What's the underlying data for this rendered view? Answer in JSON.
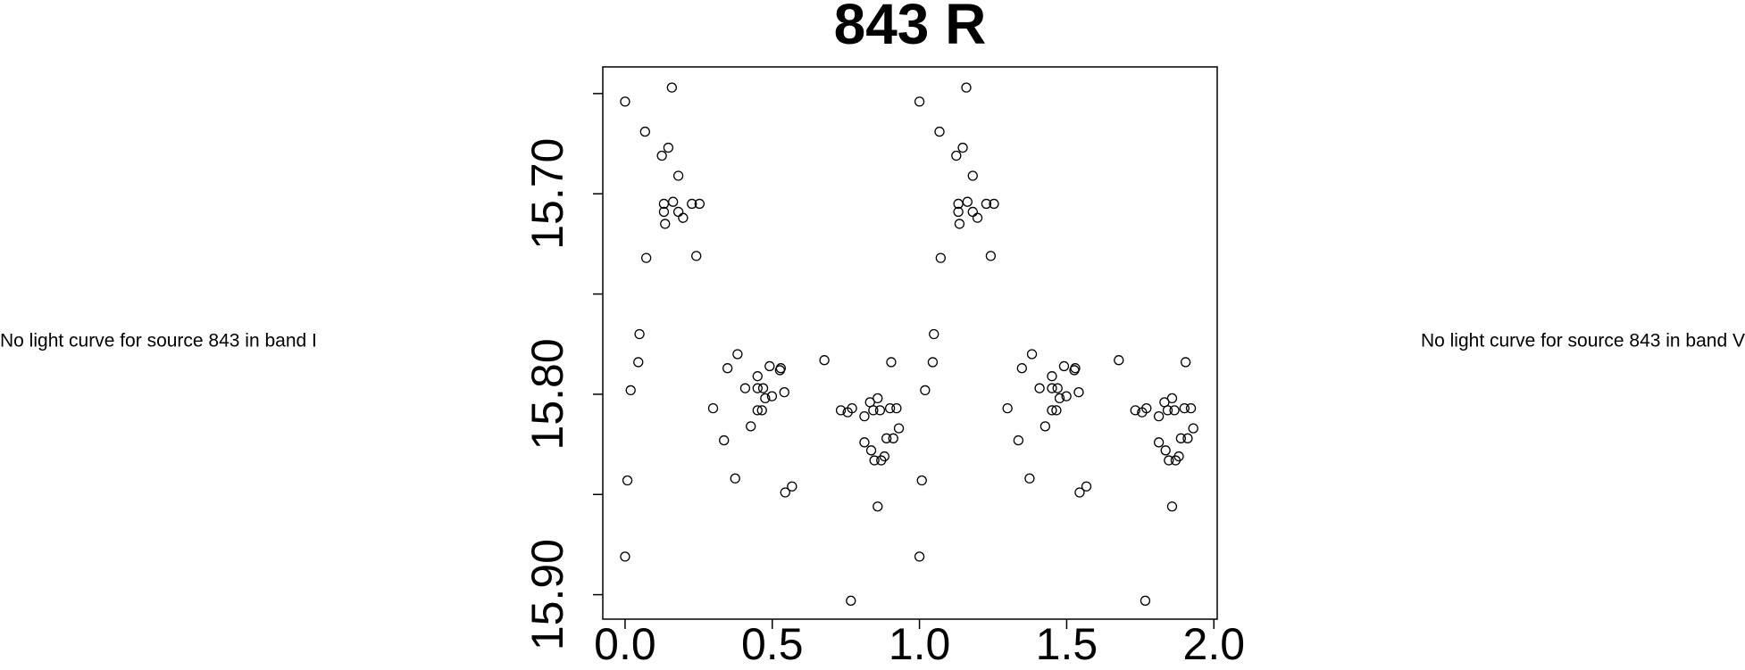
{
  "chart_data": {
    "type": "scatter",
    "title": "843 R",
    "x": [
      0.0,
      0.068,
      0.125,
      0.147,
      0.181,
      0.159,
      0.132,
      0.163,
      0.181,
      0.132,
      0.136,
      0.197,
      0.227,
      0.253,
      0.072,
      0.242,
      0.049,
      0.045,
      0.019,
      0.008,
      0.0,
      0.299,
      0.336,
      0.348,
      0.374,
      0.382,
      0.408,
      0.427,
      0.45,
      0.45,
      0.45,
      0.465,
      0.469,
      0.476,
      0.491,
      0.499,
      0.526,
      0.529,
      0.541,
      0.544,
      0.567,
      0.677,
      0.733,
      0.756,
      0.771,
      0.813,
      0.813,
      0.832,
      0.836,
      0.843,
      0.847,
      0.858,
      0.866,
      0.87,
      0.881,
      0.888,
      0.9,
      0.904,
      0.911,
      0.922,
      0.93,
      0.858,
      0.767,
      1.0,
      1.068,
      1.125,
      1.147,
      1.181,
      1.159,
      1.132,
      1.163,
      1.181,
      1.132,
      1.136,
      1.197,
      1.227,
      1.253,
      1.072,
      1.242,
      1.049,
      1.045,
      1.019,
      1.008,
      1.0,
      1.299,
      1.336,
      1.348,
      1.374,
      1.382,
      1.408,
      1.427,
      1.45,
      1.45,
      1.45,
      1.465,
      1.469,
      1.476,
      1.491,
      1.499,
      1.526,
      1.529,
      1.541,
      1.544,
      1.567,
      1.677,
      1.733,
      1.756,
      1.771,
      1.813,
      1.813,
      1.832,
      1.836,
      1.843,
      1.847,
      1.858,
      1.866,
      1.87,
      1.881,
      1.888,
      1.9,
      1.904,
      1.911,
      1.922,
      1.93,
      1.858,
      1.767
    ],
    "values": [
      15.654,
      15.669,
      15.681,
      15.677,
      15.691,
      15.647,
      15.705,
      15.704,
      15.709,
      15.709,
      15.715,
      15.712,
      15.705,
      15.705,
      15.732,
      15.731,
      15.77,
      15.784,
      15.798,
      15.843,
      15.881,
      15.807,
      15.823,
      15.787,
      15.842,
      15.78,
      15.797,
      15.816,
      15.797,
      15.791,
      15.808,
      15.808,
      15.797,
      15.802,
      15.786,
      15.801,
      15.788,
      15.787,
      15.799,
      15.849,
      15.846,
      15.783,
      15.808,
      15.809,
      15.807,
      15.811,
      15.824,
      15.804,
      15.828,
      15.808,
      15.833,
      15.802,
      15.808,
      15.833,
      15.831,
      15.822,
      15.807,
      15.784,
      15.822,
      15.807,
      15.817,
      15.856,
      15.903,
      15.654,
      15.669,
      15.681,
      15.677,
      15.691,
      15.647,
      15.705,
      15.704,
      15.709,
      15.709,
      15.715,
      15.712,
      15.705,
      15.705,
      15.732,
      15.731,
      15.77,
      15.784,
      15.798,
      15.843,
      15.881,
      15.807,
      15.823,
      15.787,
      15.842,
      15.78,
      15.797,
      15.816,
      15.797,
      15.791,
      15.808,
      15.808,
      15.797,
      15.802,
      15.786,
      15.801,
      15.788,
      15.787,
      15.799,
      15.849,
      15.846,
      15.783,
      15.808,
      15.809,
      15.807,
      15.811,
      15.824,
      15.804,
      15.828,
      15.808,
      15.833,
      15.802,
      15.808,
      15.833,
      15.831,
      15.822,
      15.807,
      15.784,
      15.822,
      15.807,
      15.817,
      15.856,
      15.903
    ],
    "color": "#000000",
    "xlim": [
      -0.0756,
      2.0113
    ],
    "xticks": [
      {
        "value": 0,
        "label": "0.0"
      },
      {
        "value": 0.5,
        "label": "0.5"
      },
      {
        "value": 1,
        "label": "1.0"
      },
      {
        "value": 1.5,
        "label": "1.5"
      },
      {
        "value": 2,
        "label": "2.0"
      }
    ],
    "ylim": [
      15.9122,
      15.6367
    ],
    "yticks": [
      {
        "value": 15.7,
        "label": "15.70"
      },
      {
        "value": 15.8,
        "label": "15.80"
      },
      {
        "value": 15.9,
        "label": "15.90"
      }
    ],
    "yminor_ticks": [
      15.65,
      15.75,
      15.85
    ]
  },
  "messages": [
    "No light curve for source 843 in band I",
    "No light curve for source 843 in band V"
  ]
}
